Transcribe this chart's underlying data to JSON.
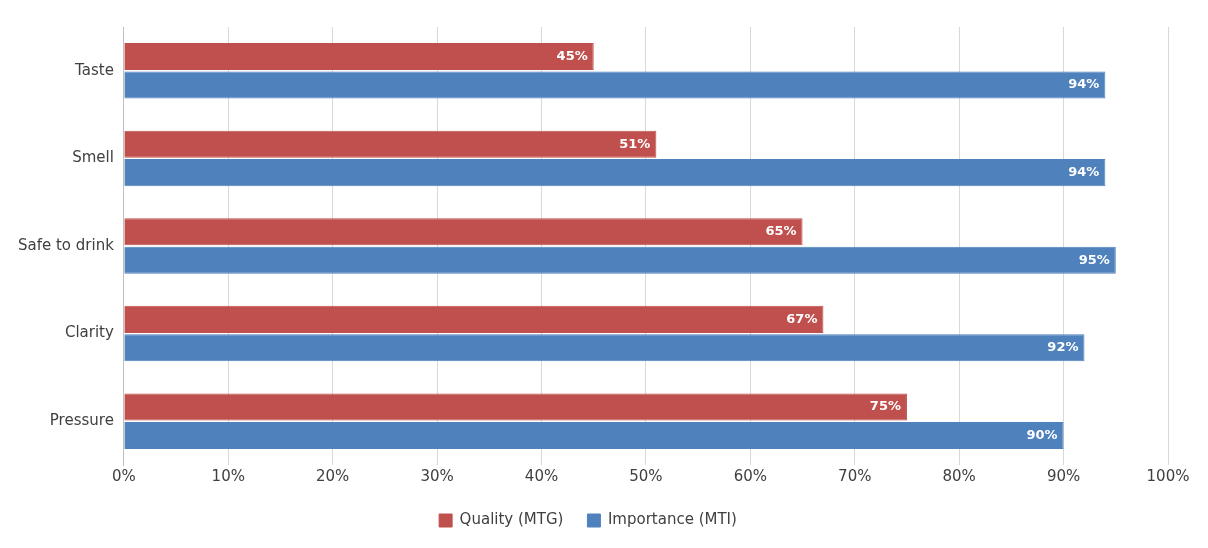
{
  "chart_data": {
    "type": "bar",
    "orientation": "horizontal",
    "categories": [
      "Taste",
      "Smell",
      "Safe to drink",
      "Clarity",
      "Pressure"
    ],
    "series": [
      {
        "name": "Quality (MTG)",
        "color": "#c0504d",
        "values": [
          45,
          51,
          65,
          67,
          75
        ],
        "value_labels": [
          "45%",
          "51%",
          "65%",
          "67%",
          "75%"
        ]
      },
      {
        "name": "Importance (MTI)",
        "color": "#4f81bd",
        "values": [
          94,
          94,
          95,
          92,
          90
        ],
        "value_labels": [
          "94%",
          "94%",
          "95%",
          "92%",
          "90%"
        ]
      }
    ],
    "xlim": [
      0,
      100
    ],
    "xticks": [
      {
        "value": 0,
        "label": "0%"
      },
      {
        "value": 10,
        "label": "10%"
      },
      {
        "value": 20,
        "label": "20%"
      },
      {
        "value": 30,
        "label": "30%"
      },
      {
        "value": 40,
        "label": "40%"
      },
      {
        "value": 50,
        "label": "50%"
      },
      {
        "value": 60,
        "label": "60%"
      },
      {
        "value": 70,
        "label": "70%"
      },
      {
        "value": 80,
        "label": "80%"
      },
      {
        "value": 90,
        "label": "90%"
      },
      {
        "value": 100,
        "label": "100%"
      }
    ],
    "grid": "x",
    "legend": "bottom"
  }
}
